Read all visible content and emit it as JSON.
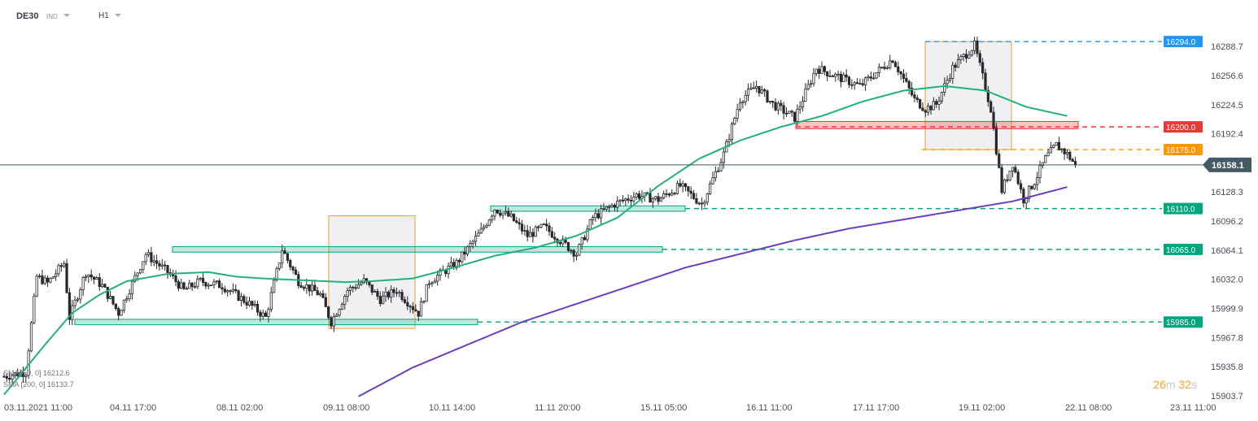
{
  "header": {
    "symbol": "DE30",
    "instrument_type": "IND",
    "timeframe": "H1"
  },
  "timer": {
    "minutes": "26",
    "m": "m",
    "seconds": "32",
    "s": "s"
  },
  "indicators": [
    {
      "label": "SMA [50, 0]",
      "value": "16212.6",
      "color": "#22b07d"
    },
    {
      "label": "SMA [200, 0]",
      "value": "16133.7",
      "color": "#6a3fbf"
    }
  ],
  "chart_data": {
    "type": "candlestick",
    "ylim": [
      15903.7,
      16304
    ],
    "y_ticks": [
      "16288.7",
      "16256.6",
      "16224.5",
      "16192.4",
      "16160.3",
      "16128.3",
      "16096.2",
      "16064.1",
      "16032.0",
      "15999.9",
      "15967.8",
      "15935.8",
      "15903.7"
    ],
    "x_ticks": [
      "03.11.2021  11:00",
      "04.11  17:00",
      "08.11  02:00",
      "09.11  08:00",
      "10.11  14:00",
      "11.11  20:00",
      "15.11  05:00",
      "16.11  11:00",
      "17.11  17:00",
      "19.11  02:00",
      "22.11  08:00",
      "23.11  11:00"
    ],
    "current_price": {
      "value": 16158.1,
      "label": "16158.1",
      "color": "#455a64"
    },
    "levels": [
      {
        "value": 16294.0,
        "label": "16294.0",
        "color": "#2196f3"
      },
      {
        "value": 16200.0,
        "label": "16200.0",
        "color": "#e53935"
      },
      {
        "value": 16175.0,
        "label": "16175.0",
        "color": "#ff9800"
      },
      {
        "value": 16110.0,
        "label": "16110.0",
        "color": "#00a67e"
      },
      {
        "value": 16065.0,
        "label": "16065.0",
        "color": "#00a67e"
      },
      {
        "value": 15985.0,
        "label": "15985.0",
        "color": "#00a67e"
      }
    ],
    "sma50_knots": [
      [
        0,
        15905
      ],
      [
        15,
        15960
      ],
      [
        25,
        15995
      ],
      [
        35,
        16015
      ],
      [
        45,
        16030
      ],
      [
        60,
        16038
      ],
      [
        75,
        16040
      ],
      [
        85,
        16035
      ],
      [
        95,
        16033
      ],
      [
        110,
        16031
      ],
      [
        125,
        16029
      ],
      [
        135,
        16030
      ],
      [
        150,
        16033
      ],
      [
        165,
        16045
      ],
      [
        180,
        16058
      ],
      [
        195,
        16067
      ],
      [
        210,
        16080
      ],
      [
        225,
        16100
      ],
      [
        240,
        16135
      ],
      [
        255,
        16165
      ],
      [
        270,
        16185
      ],
      [
        285,
        16200
      ],
      [
        300,
        16212
      ],
      [
        315,
        16228
      ],
      [
        330,
        16240
      ],
      [
        345,
        16245
      ],
      [
        360,
        16240
      ],
      [
        375,
        16222
      ],
      [
        390,
        16212
      ]
    ],
    "sma200_knots": [
      [
        130,
        15903
      ],
      [
        150,
        15935
      ],
      [
        170,
        15960
      ],
      [
        190,
        15985
      ],
      [
        210,
        16005
      ],
      [
        230,
        16025
      ],
      [
        250,
        16045
      ],
      [
        270,
        16060
      ],
      [
        290,
        16075
      ],
      [
        310,
        16088
      ],
      [
        330,
        16098
      ],
      [
        350,
        16108
      ],
      [
        370,
        16118
      ],
      [
        390,
        16133.7
      ]
    ],
    "candle_anchors": [
      [
        0,
        15925
      ],
      [
        8,
        15930
      ],
      [
        12,
        16035
      ],
      [
        16,
        16028
      ],
      [
        22,
        16050
      ],
      [
        24,
        15990
      ],
      [
        30,
        16040
      ],
      [
        36,
        16025
      ],
      [
        42,
        15995
      ],
      [
        52,
        16060
      ],
      [
        60,
        16040
      ],
      [
        66,
        16020
      ],
      [
        72,
        16030
      ],
      [
        80,
        16025
      ],
      [
        90,
        16005
      ],
      [
        96,
        15990
      ],
      [
        102,
        16065
      ],
      [
        108,
        16030
      ],
      [
        116,
        16015
      ],
      [
        120,
        15985
      ],
      [
        126,
        16020
      ],
      [
        132,
        16030
      ],
      [
        138,
        16010
      ],
      [
        144,
        16020
      ],
      [
        152,
        15995
      ],
      [
        156,
        16030
      ],
      [
        166,
        16050
      ],
      [
        175,
        16085
      ],
      [
        180,
        16110
      ],
      [
        186,
        16100
      ],
      [
        192,
        16080
      ],
      [
        198,
        16090
      ],
      [
        204,
        16075
      ],
      [
        210,
        16060
      ],
      [
        216,
        16100
      ],
      [
        224,
        16115
      ],
      [
        232,
        16125
      ],
      [
        240,
        16120
      ],
      [
        248,
        16135
      ],
      [
        256,
        16115
      ],
      [
        264,
        16170
      ],
      [
        270,
        16230
      ],
      [
        276,
        16245
      ],
      [
        282,
        16225
      ],
      [
        290,
        16210
      ],
      [
        298,
        16265
      ],
      [
        306,
        16255
      ],
      [
        314,
        16245
      ],
      [
        320,
        16260
      ],
      [
        326,
        16275
      ],
      [
        334,
        16230
      ],
      [
        338,
        16220
      ],
      [
        342,
        16225
      ],
      [
        348,
        16265
      ],
      [
        356,
        16290
      ],
      [
        362,
        16220
      ],
      [
        366,
        16130
      ],
      [
        370,
        16160
      ],
      [
        374,
        16120
      ],
      [
        378,
        16140
      ],
      [
        382,
        16165
      ],
      [
        386,
        16180
      ],
      [
        390,
        16170
      ],
      [
        393,
        16158.1
      ]
    ]
  }
}
